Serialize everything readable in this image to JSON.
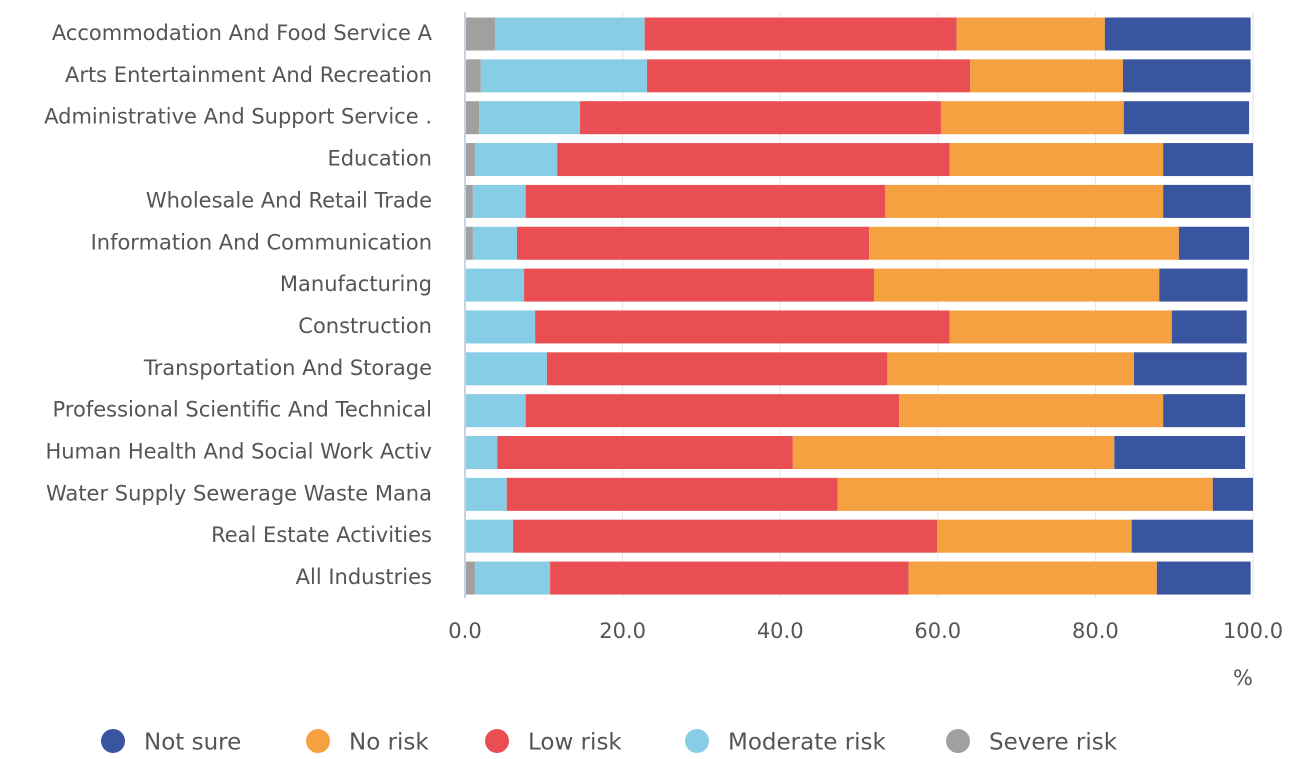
{
  "chart_data": {
    "type": "stacked-bar-horizontal",
    "categories": [
      "Accommodation And Food Service A",
      "Arts Entertainment And Recreation",
      "Administrative And Support Service .",
      "Education",
      "Wholesale And Retail Trade",
      "Information And Communication",
      "Manufacturing",
      "Construction",
      "Transportation And Storage",
      "Professional Scientific And Technical",
      "Human Health And Social Work Activ",
      "Water Supply Sewerage Waste Mana",
      "Real Estate Activities",
      "All Industries"
    ],
    "series": [
      {
        "name": "Severe risk",
        "color": "#a0a0a0",
        "values": [
          3.8,
          2.0,
          1.8,
          1.3,
          1.0,
          1.0,
          0,
          0,
          0,
          0,
          0,
          0,
          0,
          1.3
        ]
      },
      {
        "name": "Moderate risk",
        "color": "#87cde5",
        "values": [
          19.0,
          21.1,
          12.8,
          10.4,
          6.7,
          5.6,
          7.5,
          8.9,
          10.4,
          7.7,
          4.1,
          5.3,
          6.1,
          9.5
        ]
      },
      {
        "name": "Low risk",
        "color": "#e94e53",
        "values": [
          39.6,
          41.0,
          45.8,
          49.8,
          45.6,
          44.7,
          44.4,
          52.6,
          43.2,
          47.4,
          37.5,
          42.0,
          53.8,
          45.5
        ]
      },
      {
        "name": "No risk",
        "color": "#f5a041",
        "values": [
          18.8,
          19.4,
          23.2,
          27.1,
          35.3,
          39.3,
          36.2,
          28.2,
          31.3,
          33.5,
          40.8,
          47.6,
          24.7,
          31.5
        ]
      },
      {
        "name": "Not sure",
        "color": "#3a55a0",
        "values": [
          18.5,
          16.2,
          15.9,
          11.4,
          11.1,
          8.9,
          11.2,
          9.5,
          14.3,
          10.4,
          16.6,
          5.1,
          15.4,
          11.9
        ]
      }
    ],
    "xlim": [
      0,
      100
    ],
    "xticks": [
      {
        "value": 0,
        "label": "0.0"
      },
      {
        "value": 20,
        "label": "20.0"
      },
      {
        "value": 40,
        "label": "40.0"
      },
      {
        "value": 60,
        "label": "60.0"
      },
      {
        "value": 80,
        "label": "80.0"
      },
      {
        "value": 100,
        "label": "100.0"
      }
    ],
    "x_label": "%",
    "grid": true,
    "legend": "bottom"
  }
}
